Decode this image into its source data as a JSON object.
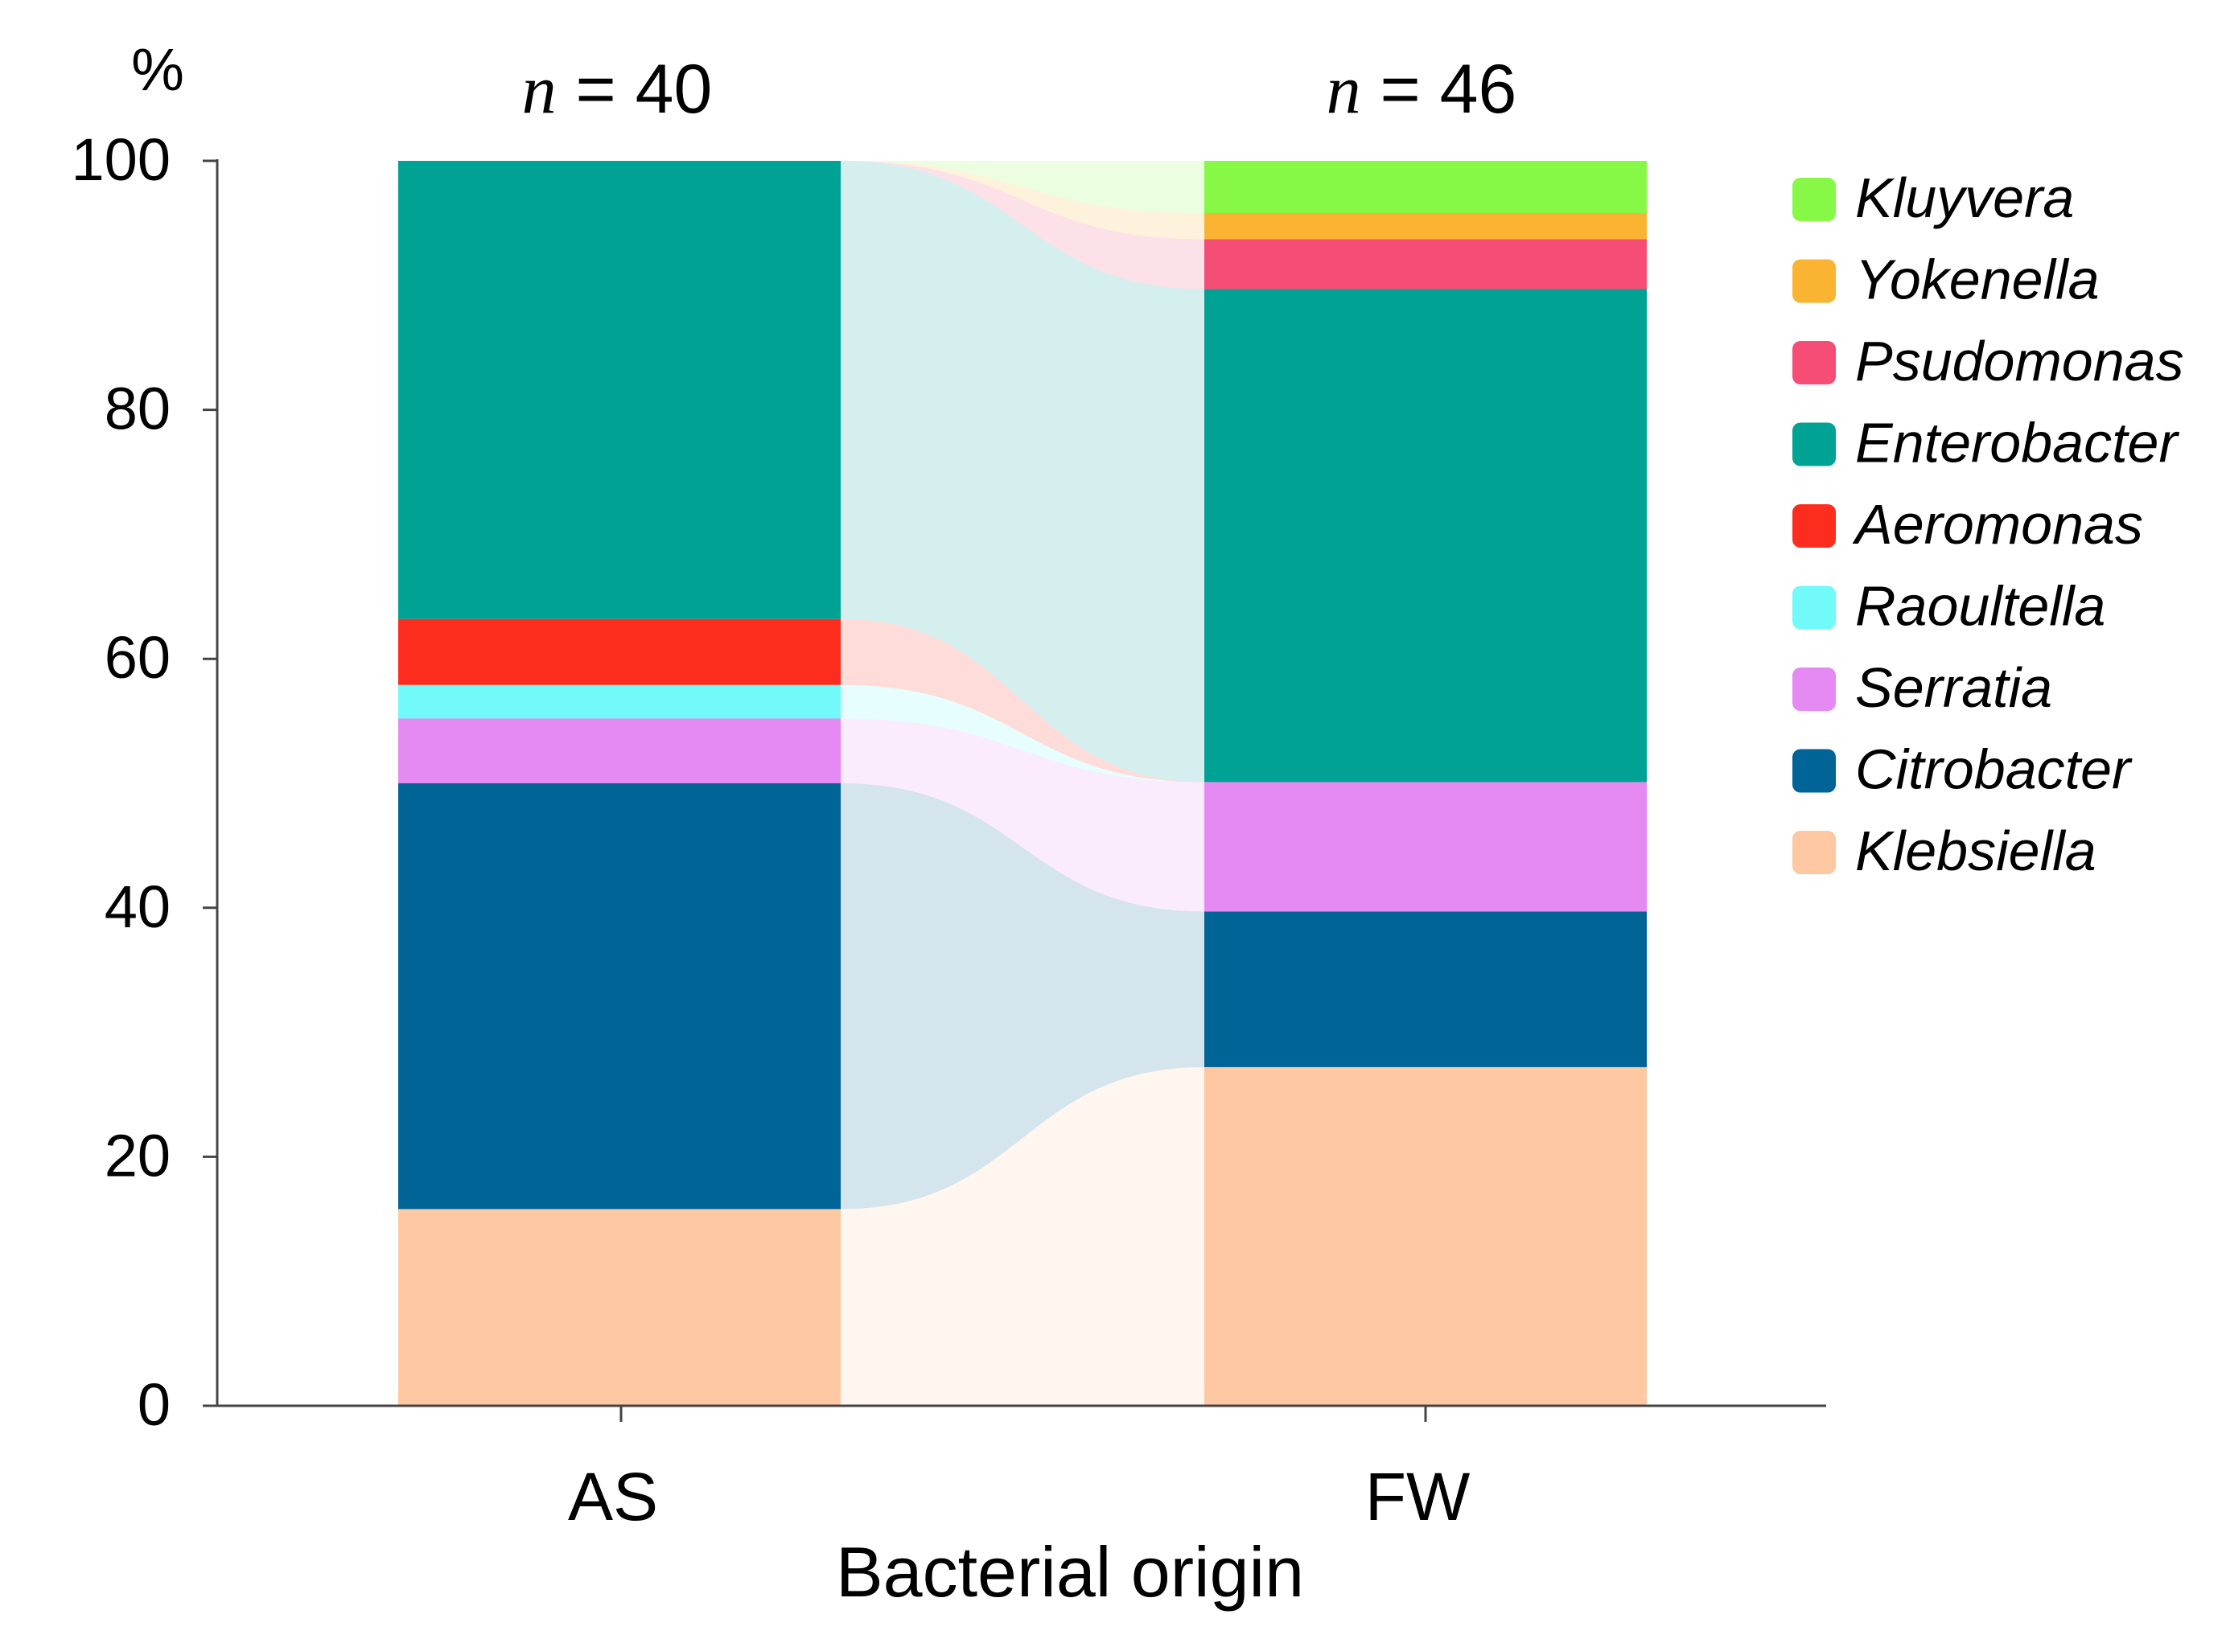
{
  "chart_data": {
    "type": "bar",
    "subtype": "stacked-100-percent-with-alluvial-flows",
    "unit_label": "%",
    "ylim": [
      0,
      100
    ],
    "yticks": [
      0,
      20,
      40,
      60,
      80,
      100
    ],
    "xlabel": "Bacterial origin",
    "categories": [
      "AS",
      "FW"
    ],
    "sample_size_labels": [
      {
        "letter": "n",
        "text": " = 40"
      },
      {
        "letter": "n",
        "text": " = 46"
      }
    ],
    "series": [
      {
        "name": "Klebsiella",
        "color": "#FDC8A2",
        "values": [
          15.8,
          27.2
        ]
      },
      {
        "name": "Citrobacter",
        "color": "#006497",
        "values": [
          34.2,
          12.5
        ]
      },
      {
        "name": "Serratia",
        "color": "#E48AF2",
        "values": [
          5.2,
          10.4
        ]
      },
      {
        "name": "Raoultella",
        "color": "#72FAFB",
        "values": [
          2.7,
          0
        ]
      },
      {
        "name": "Aeromonas",
        "color": "#FC2D1E",
        "values": [
          5.3,
          0
        ]
      },
      {
        "name": "Enterobacter",
        "color": "#00A293",
        "values": [
          36.8,
          39.6
        ]
      },
      {
        "name": "Psudomonas",
        "color": "#F54D76",
        "values": [
          0,
          4.0
        ]
      },
      {
        "name": "Yokenella",
        "color": "#FBB431",
        "values": [
          0,
          2.1
        ]
      },
      {
        "name": "Kluyvera",
        "color": "#88F847",
        "values": [
          0,
          4.2
        ]
      }
    ],
    "legend_order": [
      "Kluyvera",
      "Yokenella",
      "Psudomonas",
      "Enterobacter",
      "Aeromonas",
      "Raoultella",
      "Serratia",
      "Citrobacter",
      "Klebsiella"
    ],
    "legend_position": "right",
    "grid": false
  }
}
